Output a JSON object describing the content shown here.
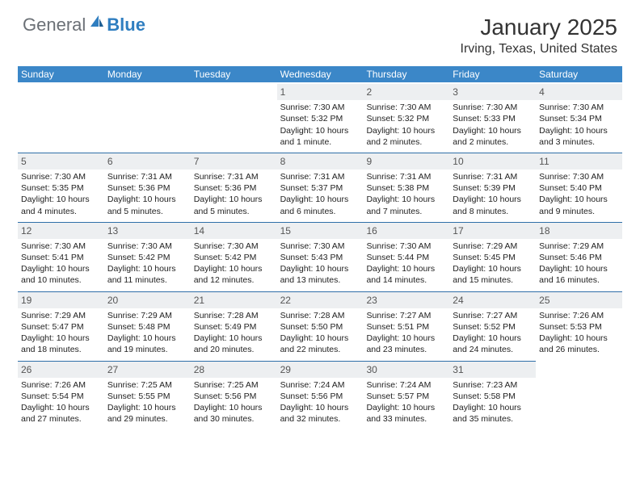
{
  "logo": {
    "general": "General",
    "blue": "Blue"
  },
  "title": "January 2025",
  "location": "Irving, Texas, United States",
  "colors": {
    "header_bg": "#3b87c8",
    "daynum_bg": "#edeff1",
    "rule": "#2f6fa8",
    "logo_gray": "#6b7076",
    "logo_blue": "#2f7ec0"
  },
  "days_of_week": [
    "Sunday",
    "Monday",
    "Tuesday",
    "Wednesday",
    "Thursday",
    "Friday",
    "Saturday"
  ],
  "weeks": [
    [
      {
        "blank": true
      },
      {
        "blank": true
      },
      {
        "blank": true
      },
      {
        "n": "1",
        "sr": "7:30 AM",
        "ss": "5:32 PM",
        "dl": "10 hours and 1 minute."
      },
      {
        "n": "2",
        "sr": "7:30 AM",
        "ss": "5:32 PM",
        "dl": "10 hours and 2 minutes."
      },
      {
        "n": "3",
        "sr": "7:30 AM",
        "ss": "5:33 PM",
        "dl": "10 hours and 2 minutes."
      },
      {
        "n": "4",
        "sr": "7:30 AM",
        "ss": "5:34 PM",
        "dl": "10 hours and 3 minutes."
      }
    ],
    [
      {
        "n": "5",
        "sr": "7:30 AM",
        "ss": "5:35 PM",
        "dl": "10 hours and 4 minutes."
      },
      {
        "n": "6",
        "sr": "7:31 AM",
        "ss": "5:36 PM",
        "dl": "10 hours and 5 minutes."
      },
      {
        "n": "7",
        "sr": "7:31 AM",
        "ss": "5:36 PM",
        "dl": "10 hours and 5 minutes."
      },
      {
        "n": "8",
        "sr": "7:31 AM",
        "ss": "5:37 PM",
        "dl": "10 hours and 6 minutes."
      },
      {
        "n": "9",
        "sr": "7:31 AM",
        "ss": "5:38 PM",
        "dl": "10 hours and 7 minutes."
      },
      {
        "n": "10",
        "sr": "7:31 AM",
        "ss": "5:39 PM",
        "dl": "10 hours and 8 minutes."
      },
      {
        "n": "11",
        "sr": "7:30 AM",
        "ss": "5:40 PM",
        "dl": "10 hours and 9 minutes."
      }
    ],
    [
      {
        "n": "12",
        "sr": "7:30 AM",
        "ss": "5:41 PM",
        "dl": "10 hours and 10 minutes."
      },
      {
        "n": "13",
        "sr": "7:30 AM",
        "ss": "5:42 PM",
        "dl": "10 hours and 11 minutes."
      },
      {
        "n": "14",
        "sr": "7:30 AM",
        "ss": "5:42 PM",
        "dl": "10 hours and 12 minutes."
      },
      {
        "n": "15",
        "sr": "7:30 AM",
        "ss": "5:43 PM",
        "dl": "10 hours and 13 minutes."
      },
      {
        "n": "16",
        "sr": "7:30 AM",
        "ss": "5:44 PM",
        "dl": "10 hours and 14 minutes."
      },
      {
        "n": "17",
        "sr": "7:29 AM",
        "ss": "5:45 PM",
        "dl": "10 hours and 15 minutes."
      },
      {
        "n": "18",
        "sr": "7:29 AM",
        "ss": "5:46 PM",
        "dl": "10 hours and 16 minutes."
      }
    ],
    [
      {
        "n": "19",
        "sr": "7:29 AM",
        "ss": "5:47 PM",
        "dl": "10 hours and 18 minutes."
      },
      {
        "n": "20",
        "sr": "7:29 AM",
        "ss": "5:48 PM",
        "dl": "10 hours and 19 minutes."
      },
      {
        "n": "21",
        "sr": "7:28 AM",
        "ss": "5:49 PM",
        "dl": "10 hours and 20 minutes."
      },
      {
        "n": "22",
        "sr": "7:28 AM",
        "ss": "5:50 PM",
        "dl": "10 hours and 22 minutes."
      },
      {
        "n": "23",
        "sr": "7:27 AM",
        "ss": "5:51 PM",
        "dl": "10 hours and 23 minutes."
      },
      {
        "n": "24",
        "sr": "7:27 AM",
        "ss": "5:52 PM",
        "dl": "10 hours and 24 minutes."
      },
      {
        "n": "25",
        "sr": "7:26 AM",
        "ss": "5:53 PM",
        "dl": "10 hours and 26 minutes."
      }
    ],
    [
      {
        "n": "26",
        "sr": "7:26 AM",
        "ss": "5:54 PM",
        "dl": "10 hours and 27 minutes."
      },
      {
        "n": "27",
        "sr": "7:25 AM",
        "ss": "5:55 PM",
        "dl": "10 hours and 29 minutes."
      },
      {
        "n": "28",
        "sr": "7:25 AM",
        "ss": "5:56 PM",
        "dl": "10 hours and 30 minutes."
      },
      {
        "n": "29",
        "sr": "7:24 AM",
        "ss": "5:56 PM",
        "dl": "10 hours and 32 minutes."
      },
      {
        "n": "30",
        "sr": "7:24 AM",
        "ss": "5:57 PM",
        "dl": "10 hours and 33 minutes."
      },
      {
        "n": "31",
        "sr": "7:23 AM",
        "ss": "5:58 PM",
        "dl": "10 hours and 35 minutes."
      },
      {
        "blank": true
      }
    ]
  ],
  "labels": {
    "sunrise": "Sunrise: ",
    "sunset": "Sunset: ",
    "daylight": "Daylight: "
  }
}
